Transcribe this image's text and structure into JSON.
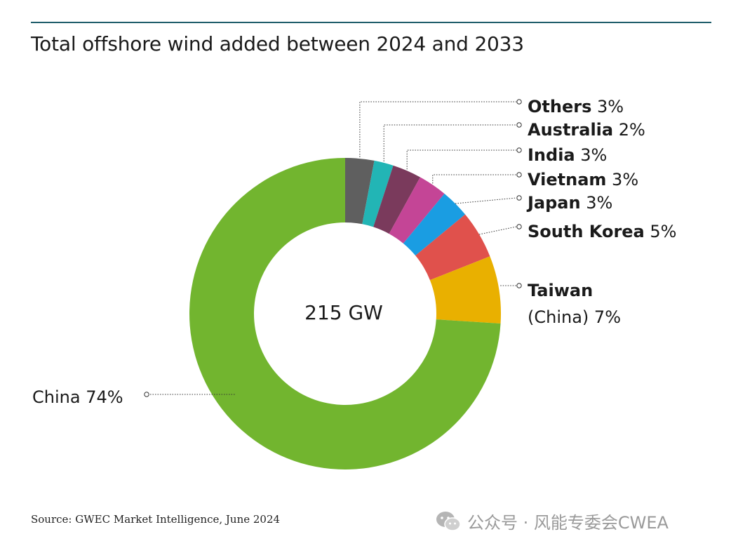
{
  "title": "Total offshore wind added between 2024 and 2033",
  "source": "Source: GWEC Market Intelligence, June 2024",
  "watermark": "公众号 · 风能专委会CWEA",
  "chart_data": {
    "type": "pie",
    "donut": true,
    "center_label": "215 GW",
    "title": "Total offshore wind added between 2024 and 2033",
    "slices": [
      {
        "name": "Others",
        "value": 3,
        "pct_label": "3%",
        "color": "#5f5f5f"
      },
      {
        "name": "Australia",
        "value": 2,
        "pct_label": "2%",
        "color": "#22b5b5"
      },
      {
        "name": "India",
        "value": 3,
        "pct_label": "3%",
        "color": "#7a3a5c"
      },
      {
        "name": "Vietnam",
        "value": 3,
        "pct_label": "3%",
        "color": "#c44596"
      },
      {
        "name": "Japan",
        "value": 3,
        "pct_label": "3%",
        "color": "#1a9de2"
      },
      {
        "name": "South Korea",
        "value": 5,
        "pct_label": "5%",
        "color": "#e0514c"
      },
      {
        "name": "Taiwan",
        "name_line2": "(China)",
        "value": 7,
        "pct_label": "7%",
        "color": "#e9b000"
      },
      {
        "name": "China",
        "value": 74,
        "pct_label": "74%",
        "color": "#72b52f"
      }
    ]
  }
}
